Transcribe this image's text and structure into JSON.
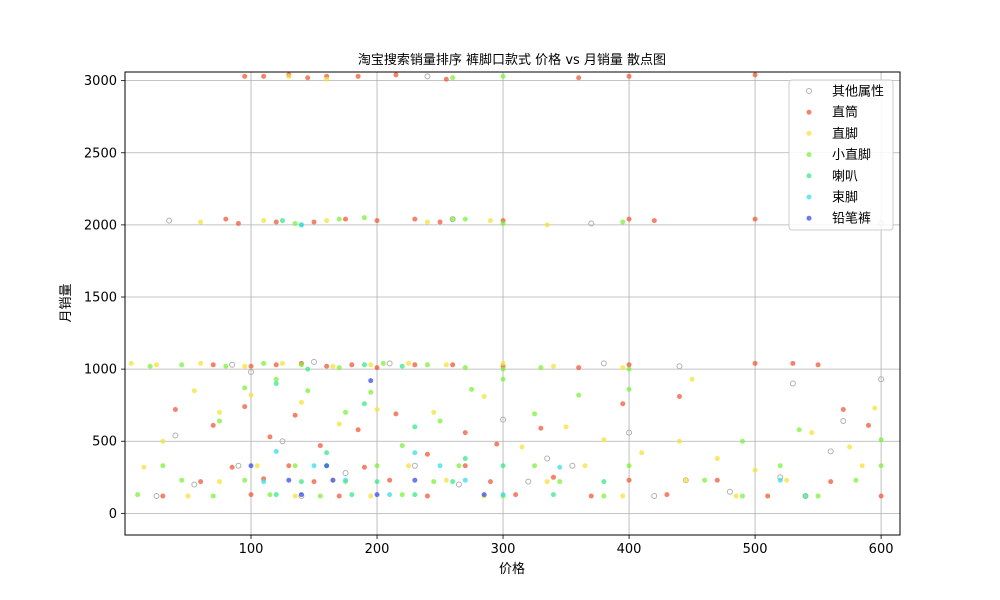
{
  "chart_data": {
    "type": "scatter",
    "title": "淘宝搜索销量排序 裤脚口款式 价格 vs 月销量 散点图",
    "xlabel": "价格",
    "ylabel": "月销量",
    "xlim": [
      0,
      615
    ],
    "ylim": [
      -150,
      3060
    ],
    "xticks": [
      100,
      200,
      300,
      400,
      500,
      600
    ],
    "yticks": [
      0,
      500,
      1000,
      1500,
      2000,
      2500,
      3000
    ],
    "grid": true,
    "legend_position": "top-right",
    "series": [
      {
        "name": "其他属性",
        "color": "#b0b0b0",
        "hollow": true,
        "points": [
          [
            35,
            2030
          ],
          [
            40,
            540
          ],
          [
            85,
            1030
          ],
          [
            100,
            980
          ],
          [
            125,
            500
          ],
          [
            150,
            1050
          ],
          [
            210,
            1040
          ],
          [
            240,
            3030
          ],
          [
            260,
            2040
          ],
          [
            300,
            650
          ],
          [
            335,
            380
          ],
          [
            370,
            2010
          ],
          [
            380,
            1040
          ],
          [
            400,
            560
          ],
          [
            440,
            1020
          ],
          [
            445,
            230
          ],
          [
            520,
            250
          ],
          [
            530,
            900
          ],
          [
            540,
            120
          ],
          [
            560,
            430
          ],
          [
            570,
            640
          ],
          [
            600,
            930
          ],
          [
            600,
            2010
          ],
          [
            25,
            120
          ],
          [
            55,
            200
          ],
          [
            90,
            330
          ],
          [
            140,
            120
          ],
          [
            175,
            280
          ],
          [
            230,
            330
          ],
          [
            265,
            200
          ],
          [
            320,
            220
          ],
          [
            355,
            330
          ],
          [
            420,
            120
          ],
          [
            480,
            150
          ]
        ]
      },
      {
        "name": "直筒",
        "color": "#f05a3a",
        "points": [
          [
            95,
            3030
          ],
          [
            110,
            3030
          ],
          [
            130,
            3040
          ],
          [
            145,
            3020
          ],
          [
            160,
            3030
          ],
          [
            185,
            3030
          ],
          [
            215,
            3040
          ],
          [
            255,
            3010
          ],
          [
            360,
            3020
          ],
          [
            400,
            3030
          ],
          [
            500,
            3040
          ],
          [
            80,
            2040
          ],
          [
            90,
            2010
          ],
          [
            120,
            2020
          ],
          [
            150,
            2020
          ],
          [
            175,
            2040
          ],
          [
            200,
            2030
          ],
          [
            230,
            2040
          ],
          [
            250,
            2020
          ],
          [
            300,
            2030
          ],
          [
            400,
            2040
          ],
          [
            420,
            2030
          ],
          [
            500,
            2040
          ],
          [
            70,
            1030
          ],
          [
            100,
            1020
          ],
          [
            120,
            1030
          ],
          [
            140,
            1040
          ],
          [
            160,
            1020
          ],
          [
            180,
            1030
          ],
          [
            200,
            1010
          ],
          [
            230,
            1030
          ],
          [
            260,
            1030
          ],
          [
            300,
            1020
          ],
          [
            360,
            1010
          ],
          [
            400,
            1030
          ],
          [
            500,
            1040
          ],
          [
            530,
            1040
          ],
          [
            550,
            1030
          ],
          [
            40,
            720
          ],
          [
            70,
            610
          ],
          [
            95,
            740
          ],
          [
            115,
            530
          ],
          [
            135,
            680
          ],
          [
            155,
            470
          ],
          [
            185,
            580
          ],
          [
            215,
            690
          ],
          [
            240,
            410
          ],
          [
            270,
            560
          ],
          [
            295,
            480
          ],
          [
            330,
            590
          ],
          [
            395,
            760
          ],
          [
            440,
            810
          ],
          [
            570,
            720
          ],
          [
            590,
            610
          ],
          [
            30,
            120
          ],
          [
            60,
            220
          ],
          [
            85,
            320
          ],
          [
            100,
            130
          ],
          [
            110,
            240
          ],
          [
            130,
            330
          ],
          [
            150,
            220
          ],
          [
            170,
            120
          ],
          [
            190,
            320
          ],
          [
            210,
            230
          ],
          [
            240,
            120
          ],
          [
            270,
            330
          ],
          [
            290,
            220
          ],
          [
            310,
            130
          ],
          [
            340,
            250
          ],
          [
            370,
            120
          ],
          [
            400,
            230
          ],
          [
            430,
            130
          ],
          [
            470,
            230
          ],
          [
            510,
            120
          ],
          [
            560,
            220
          ],
          [
            600,
            120
          ]
        ]
      },
      {
        "name": "直脚",
        "color": "#f5e23a",
        "points": [
          [
            5,
            1040
          ],
          [
            25,
            1030
          ],
          [
            60,
            1040
          ],
          [
            95,
            1020
          ],
          [
            125,
            1040
          ],
          [
            165,
            1020
          ],
          [
            195,
            1030
          ],
          [
            225,
            1040
          ],
          [
            255,
            1030
          ],
          [
            300,
            1040
          ],
          [
            340,
            1020
          ],
          [
            395,
            1010
          ],
          [
            130,
            3030
          ],
          [
            160,
            3010
          ],
          [
            60,
            2020
          ],
          [
            110,
            2030
          ],
          [
            160,
            2030
          ],
          [
            240,
            2020
          ],
          [
            290,
            2030
          ],
          [
            335,
            2000
          ],
          [
            15,
            320
          ],
          [
            30,
            500
          ],
          [
            55,
            850
          ],
          [
            75,
            700
          ],
          [
            100,
            820
          ],
          [
            140,
            770
          ],
          [
            170,
            620
          ],
          [
            200,
            720
          ],
          [
            245,
            700
          ],
          [
            285,
            810
          ],
          [
            315,
            460
          ],
          [
            350,
            600
          ],
          [
            380,
            510
          ],
          [
            410,
            420
          ],
          [
            440,
            500
          ],
          [
            450,
            930
          ],
          [
            470,
            380
          ],
          [
            500,
            300
          ],
          [
            545,
            560
          ],
          [
            575,
            460
          ],
          [
            595,
            730
          ],
          [
            50,
            120
          ],
          [
            75,
            220
          ],
          [
            105,
            330
          ],
          [
            135,
            120
          ],
          [
            165,
            230
          ],
          [
            195,
            120
          ],
          [
            225,
            330
          ],
          [
            255,
            230
          ],
          [
            285,
            120
          ],
          [
            335,
            220
          ],
          [
            365,
            330
          ],
          [
            395,
            120
          ],
          [
            445,
            230
          ],
          [
            485,
            120
          ],
          [
            525,
            230
          ],
          [
            585,
            330
          ]
        ]
      },
      {
        "name": "小直脚",
        "color": "#7ef03a",
        "points": [
          [
            260,
            3020
          ],
          [
            300,
            3030
          ],
          [
            135,
            2010
          ],
          [
            170,
            2040
          ],
          [
            190,
            2050
          ],
          [
            260,
            2040
          ],
          [
            270,
            2040
          ],
          [
            300,
            2010
          ],
          [
            395,
            2020
          ],
          [
            20,
            1020
          ],
          [
            45,
            1030
          ],
          [
            80,
            1020
          ],
          [
            110,
            1040
          ],
          [
            140,
            1030
          ],
          [
            170,
            1010
          ],
          [
            205,
            1040
          ],
          [
            240,
            1030
          ],
          [
            270,
            1010
          ],
          [
            300,
            1000
          ],
          [
            330,
            1010
          ],
          [
            400,
            1000
          ],
          [
            75,
            640
          ],
          [
            95,
            870
          ],
          [
            120,
            930
          ],
          [
            145,
            850
          ],
          [
            175,
            700
          ],
          [
            195,
            840
          ],
          [
            220,
            470
          ],
          [
            250,
            640
          ],
          [
            275,
            860
          ],
          [
            300,
            930
          ],
          [
            325,
            690
          ],
          [
            360,
            820
          ],
          [
            400,
            860
          ],
          [
            490,
            500
          ],
          [
            535,
            580
          ],
          [
            600,
            510
          ],
          [
            10,
            130
          ],
          [
            30,
            330
          ],
          [
            45,
            230
          ],
          [
            70,
            120
          ],
          [
            95,
            230
          ],
          [
            115,
            130
          ],
          [
            135,
            330
          ],
          [
            155,
            120
          ],
          [
            175,
            220
          ],
          [
            200,
            330
          ],
          [
            220,
            130
          ],
          [
            245,
            220
          ],
          [
            265,
            330
          ],
          [
            300,
            120
          ],
          [
            325,
            330
          ],
          [
            345,
            220
          ],
          [
            380,
            120
          ],
          [
            400,
            330
          ],
          [
            460,
            230
          ],
          [
            490,
            120
          ],
          [
            520,
            330
          ],
          [
            550,
            120
          ],
          [
            580,
            230
          ],
          [
            600,
            330
          ]
        ]
      },
      {
        "name": "喇叭",
        "color": "#3ae88a",
        "points": [
          [
            125,
            2030
          ],
          [
            140,
            2000
          ],
          [
            145,
            1000
          ],
          [
            190,
            1030
          ],
          [
            220,
            1020
          ],
          [
            120,
            900
          ],
          [
            160,
            420
          ],
          [
            190,
            760
          ],
          [
            230,
            600
          ],
          [
            270,
            380
          ],
          [
            120,
            130
          ],
          [
            140,
            220
          ],
          [
            160,
            330
          ],
          [
            180,
            130
          ],
          [
            200,
            220
          ],
          [
            230,
            130
          ],
          [
            260,
            220
          ],
          [
            300,
            330
          ],
          [
            340,
            130
          ],
          [
            380,
            220
          ],
          [
            540,
            120
          ]
        ]
      },
      {
        "name": "束脚",
        "color": "#3adce8",
        "points": [
          [
            140,
            2000
          ],
          [
            120,
            430
          ],
          [
            150,
            330
          ],
          [
            175,
            230
          ],
          [
            230,
            420
          ],
          [
            270,
            230
          ],
          [
            300,
            130
          ],
          [
            345,
            320
          ],
          [
            520,
            230
          ],
          [
            110,
            220
          ],
          [
            210,
            130
          ],
          [
            250,
            330
          ]
        ]
      },
      {
        "name": "铅笔裤",
        "color": "#3a4ef0",
        "points": [
          [
            100,
            330
          ],
          [
            130,
            230
          ],
          [
            140,
            130
          ],
          [
            165,
            230
          ],
          [
            195,
            920
          ],
          [
            200,
            130
          ],
          [
            230,
            230
          ],
          [
            285,
            130
          ],
          [
            160,
            330
          ]
        ]
      }
    ]
  }
}
